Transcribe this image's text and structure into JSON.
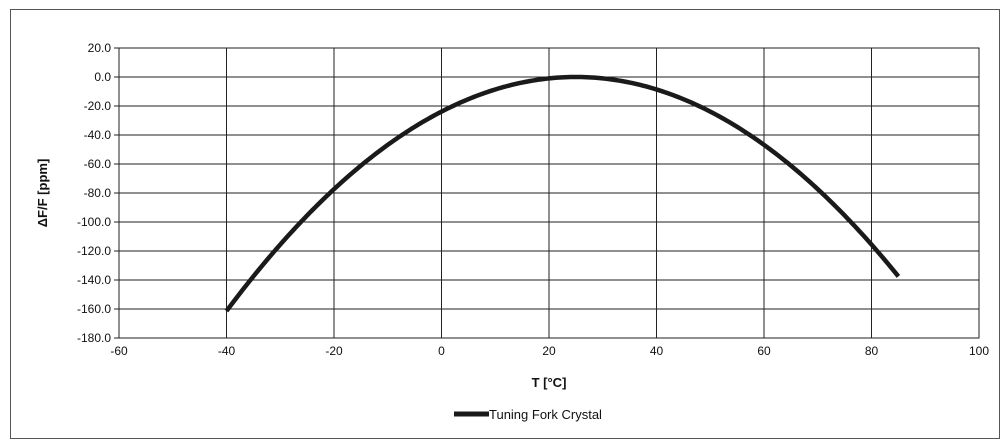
{
  "chart_data": {
    "type": "line",
    "title": "",
    "xlabel": "T [°C]",
    "ylabel": "ΔF/F [ppm]",
    "xlim": [
      -60,
      100
    ],
    "ylim": [
      -180,
      20
    ],
    "grid": true,
    "legend_placement": "bottom-center",
    "x_ticks": [
      "-60",
      "-40",
      "-20",
      "0",
      "20",
      "40",
      "60",
      "80",
      "100"
    ],
    "y_ticks": [
      "20.0",
      "0.0",
      "-20.0",
      "-40.0",
      "-60.0",
      "-80.0",
      "-100.0",
      "-120.0",
      "-140.0",
      "-160.0",
      "-180.0"
    ],
    "series": [
      {
        "name": "Tuning Fork Crystal",
        "color": "#1a1a1a",
        "x": [
          -40,
          -35,
          -30,
          -25,
          -20,
          -15,
          -10,
          -5,
          0,
          5,
          10,
          15,
          20,
          25,
          30,
          35,
          40,
          45,
          50,
          55,
          60,
          65,
          70,
          75,
          80,
          85
        ],
        "y": [
          -161.6,
          -134.2,
          -108.8,
          -85.9,
          -65.6,
          -47.9,
          -33.0,
          -20.8,
          -23.3,
          -14.9,
          -8.4,
          -3.7,
          -0.9,
          0.0,
          -0.9,
          -3.7,
          -8.4,
          -14.9,
          -23.3,
          -33.5,
          -45.6,
          -59.6,
          -75.5,
          -93.2,
          -112.8,
          -137.2
        ]
      }
    ]
  }
}
